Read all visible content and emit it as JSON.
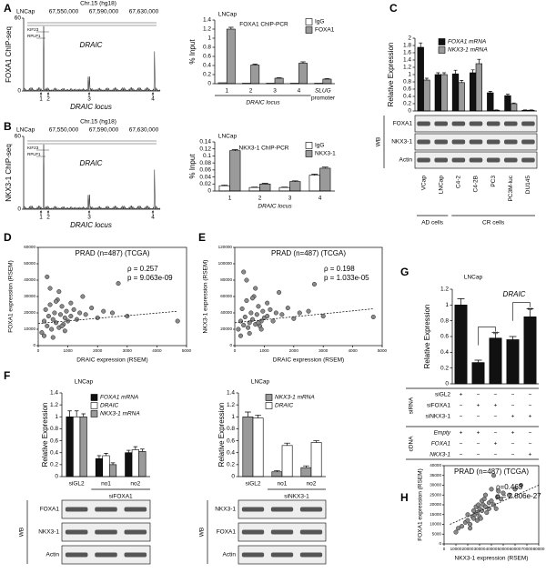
{
  "panel_labels": [
    "A",
    "B",
    "C",
    "D",
    "E",
    "F",
    "G",
    "H"
  ],
  "chip_seq": [
    {
      "ylabel": "FOXA1 ChIP-seq",
      "yticks": [
        0,
        60
      ],
      "cell": "LNCap",
      "chrom": "Chr.15 (hg18)",
      "coords": [
        "67,550,000",
        "67,590,000",
        "67,630,000"
      ],
      "genes": [
        "KIF23",
        "RPLP1"
      ],
      "gene": "DRAIC",
      "sites": [
        "1",
        "2",
        "3",
        "4"
      ],
      "xlabel": "DRAIC locus"
    },
    {
      "ylabel": "NKX3-1 ChIP-seq",
      "yticks": [
        0,
        60
      ],
      "cell": "LNCap",
      "chrom": "Chr.15 (hg18)",
      "coords": [
        "67,550,000",
        "67,590,000",
        "67,630,000"
      ],
      "genes": [
        "KIF23",
        "RPLP1"
      ],
      "gene": "DRAIC",
      "sites": [
        "1",
        "2",
        "3",
        "4"
      ],
      "xlabel": "DRAIC locus"
    }
  ],
  "blot_c": {
    "wb": "WB",
    "rows": [
      "FOXA1",
      "NKX3-1",
      "Actin"
    ],
    "groups": [
      "AD cells",
      "CR cells"
    ]
  },
  "blot_f": [
    {
      "wb": "WB",
      "rows": [
        "FOXA1",
        "NKX3-1",
        "Actin"
      ]
    },
    {
      "wb": "WB",
      "rows": [
        "NKX3-1",
        "FOXA1",
        "Actin"
      ]
    }
  ],
  "chart_data": [
    {
      "type": "bar",
      "title": "FOXA1 ChIP-PCR",
      "subtitle": "LNCap",
      "ylabel": "% Input",
      "xlabel": "DRAIC locus",
      "xlabel2": "promoter",
      "categories": [
        "1",
        "2",
        "3",
        "4",
        "SLUG"
      ],
      "series": [
        {
          "name": "IgG",
          "color": "#ffffff",
          "values": [
            0.02,
            0.01,
            0.01,
            0.01,
            0.01
          ]
        },
        {
          "name": "FOXA1",
          "color": "#9a9a9a",
          "values": [
            1.2,
            0.41,
            0.12,
            0.45,
            0.1
          ],
          "errors": [
            0.04,
            0.02,
            0.01,
            0.03,
            0.01
          ]
        }
      ],
      "ylim": [
        0,
        1.4
      ],
      "yticks": [
        0,
        0.2,
        0.4,
        0.6,
        0.8,
        1,
        1.2,
        1.4
      ],
      "legend": "top-right"
    },
    {
      "type": "bar",
      "title": "NKX3-1 ChIP-PCR",
      "subtitle": "LNCap",
      "ylabel": "% Input",
      "xlabel": "DRAIC locus",
      "categories": [
        "1",
        "2",
        "3",
        "4"
      ],
      "series": [
        {
          "name": "IgG",
          "color": "#ffffff",
          "values": [
            0.015,
            0.01,
            0.01,
            0.045
          ],
          "errors": [
            0.002,
            0.001,
            0.001,
            0.003
          ]
        },
        {
          "name": "NKX3-1",
          "color": "#9a9a9a",
          "values": [
            0.115,
            0.02,
            0.027,
            0.065
          ],
          "errors": [
            0.003,
            0.002,
            0.002,
            0.003
          ]
        }
      ],
      "ylim": [
        0,
        0.14
      ],
      "yticks": [
        0,
        0.02,
        0.04,
        0.06,
        0.08,
        0.1,
        0.12,
        0.14
      ],
      "legend": "top-right"
    },
    {
      "type": "bar",
      "ylabel": "Relative Expression",
      "categories": [
        "VCap",
        "LNCap",
        "C4-2",
        "C4-2B",
        "PC3",
        "PC3M-luc",
        "DU145"
      ],
      "series": [
        {
          "name": "FOXA1 mRNA",
          "color": "#111111",
          "values": [
            1.75,
            1.0,
            1.02,
            1.05,
            0.5,
            0.42,
            0.02
          ],
          "errors": [
            0.12,
            0.05,
            0.1,
            0.08,
            0.04,
            0.04,
            0.01
          ]
        },
        {
          "name": "NKX3-1 mRNA",
          "color": "#9a9a9a",
          "values": [
            0.85,
            1.0,
            0.78,
            1.3,
            0.02,
            0.2,
            0.02
          ],
          "errors": [
            0.05,
            0.05,
            0.06,
            0.12,
            0.01,
            0.02,
            0.01
          ]
        }
      ],
      "ylim": [
        0,
        2
      ],
      "yticks": [
        0,
        0.2,
        0.4,
        0.6,
        0.8,
        1,
        1.2,
        1.4,
        1.6,
        1.8,
        2
      ],
      "legend": "top-left"
    },
    {
      "type": "scatter",
      "title": "PRAD (n=487) (TCGA)",
      "stats": [
        "ρ = 0.257",
        "p = 9.063e-09"
      ],
      "xlabel": "DRAIC expression (RSEM)",
      "ylabel": "FOXA1 expression (RSEM)",
      "x": [
        120,
        200,
        250,
        300,
        350,
        400,
        450,
        500,
        550,
        600,
        650,
        700,
        750,
        800,
        850,
        900,
        950,
        1000,
        1100,
        1200,
        1300,
        1400,
        1500,
        1600,
        1800,
        2000,
        2200,
        2500,
        2700,
        3000,
        4700,
        300,
        500,
        700,
        900,
        1100,
        200,
        400,
        600,
        800
      ],
      "values": [
        8000,
        15000,
        22000,
        12000,
        18000,
        25000,
        10000,
        16000,
        20000,
        14000,
        28000,
        11000,
        19000,
        24000,
        13000,
        17000,
        21000,
        15000,
        18000,
        22000,
        16000,
        20000,
        30000,
        19000,
        23000,
        17000,
        21000,
        20000,
        38000,
        18000,
        15000,
        42000,
        5000,
        33000,
        9000,
        26000,
        6000,
        35000,
        27000,
        12000
      ],
      "trendline": {
        "x": [
          0,
          4700
        ],
        "y": [
          13500,
          21000
        ]
      },
      "xlim": [
        0,
        5000
      ],
      "xticks": [
        0,
        1000,
        2000,
        3000,
        4000,
        5000
      ],
      "ylim": [
        0,
        60000
      ],
      "yticks": [
        0,
        10000,
        20000,
        30000,
        40000,
        50000,
        60000
      ]
    },
    {
      "type": "scatter",
      "title": "PRAD (n=487) (TCGA)",
      "stats": [
        "ρ = 0.198",
        "p = 1.033e-05"
      ],
      "xlabel": "DRAIC expression (RSEM)",
      "ylabel": "NKX3-1 expression (RSEM)",
      "x": [
        120,
        200,
        250,
        300,
        350,
        400,
        450,
        500,
        550,
        600,
        650,
        700,
        750,
        800,
        850,
        900,
        950,
        1000,
        1100,
        1200,
        1300,
        1400,
        1500,
        1600,
        1800,
        2000,
        2200,
        2500,
        2700,
        3000,
        4700,
        300,
        500,
        700,
        900,
        1100,
        200,
        400,
        600,
        800
      ],
      "values": [
        20000,
        30000,
        45000,
        25000,
        35000,
        55000,
        22000,
        28000,
        40000,
        32000,
        60000,
        26000,
        38000,
        48000,
        24000,
        30000,
        42000,
        34000,
        36000,
        44000,
        30000,
        40000,
        65000,
        38000,
        46000,
        33000,
        40000,
        42000,
        75000,
        36000,
        35000,
        90000,
        15000,
        70000,
        20000,
        52000,
        12000,
        80000,
        58000,
        28000
      ],
      "trendline": {
        "x": [
          0,
          4700
        ],
        "y": [
          28000,
          45000
        ]
      },
      "xlim": [
        0,
        5000
      ],
      "xticks": [
        0,
        1000,
        2000,
        3000,
        4000,
        5000
      ],
      "ylim": [
        0,
        120000
      ],
      "yticks": [
        0,
        20000,
        40000,
        60000,
        80000,
        100000,
        120000
      ]
    },
    {
      "type": "bar",
      "subtitle": "LNCap",
      "ylabel": "Relative Expression",
      "group_label": "siFOXA1",
      "categories": [
        "siGL2",
        "no1",
        "no2"
      ],
      "series": [
        {
          "name": "FOXA1 mRNA",
          "color": "#111111",
          "values": [
            1,
            0.3,
            0.4
          ],
          "errors": [
            0.1,
            0.05,
            0.04
          ]
        },
        {
          "name": "DRAIC",
          "color": "#ffffff",
          "values": [
            1,
            0.35,
            0.45
          ],
          "errors": [
            0.1,
            0.04,
            0.05
          ]
        },
        {
          "name": "NKX3-1 mRNA",
          "color": "#9a9a9a",
          "values": [
            1,
            0.2,
            0.42
          ],
          "errors": [
            0.05,
            0.03,
            0.04
          ]
        }
      ],
      "ylim": [
        0,
        1.4
      ],
      "yticks": [
        0,
        0.2,
        0.4,
        0.6,
        0.8,
        1,
        1.2,
        1.4
      ],
      "legend": "top-right"
    },
    {
      "type": "bar",
      "subtitle": "LNCap",
      "ylabel": "Relative Expression",
      "group_label": "siNKX3-1",
      "categories": [
        "siGL2",
        "no1",
        "no2"
      ],
      "series": [
        {
          "name": "NKX3-1 mRNA",
          "color": "#9a9a9a",
          "values": [
            1,
            0.08,
            0.15
          ],
          "errors": [
            0.08,
            0.02,
            0.03
          ]
        },
        {
          "name": "DRAIC",
          "color": "#ffffff",
          "values": [
            0.98,
            0.52,
            0.57
          ],
          "errors": [
            0.05,
            0.04,
            0.03
          ]
        }
      ],
      "ylim": [
        0,
        1.4
      ],
      "yticks": [
        0,
        0.2,
        0.4,
        0.6,
        0.8,
        1,
        1.2,
        1.4
      ],
      "legend": "top-right"
    },
    {
      "type": "bar",
      "title": "DRAIC",
      "subtitle": "LNCap",
      "ylabel": "Relative Expression",
      "color": "#111111",
      "values": [
        1,
        0.27,
        0.58,
        0.56,
        0.85
      ],
      "errors": [
        0.08,
        0.03,
        0.07,
        0.04,
        0.1
      ],
      "ylim": [
        0,
        1.2
      ],
      "yticks": [
        0,
        0.2,
        0.4,
        0.6,
        0.8,
        1,
        1.2
      ],
      "annotations": [
        "**",
        "**"
      ],
      "table": {
        "groups": [
          {
            "name": "siRNA",
            "rows": [
              {
                "label": "siGL2",
                "cells": [
                  "+",
                  "−",
                  "−",
                  "−",
                  "−"
                ]
              },
              {
                "label": "siFOXA1",
                "cells": [
                  "−",
                  "+",
                  "+",
                  "−",
                  "−"
                ]
              },
              {
                "label": "siNKX3-1",
                "cells": [
                  "−",
                  "−",
                  "−",
                  "+",
                  "+"
                ]
              }
            ]
          },
          {
            "name": "cDNA",
            "rows": [
              {
                "label": "Empty",
                "cells": [
                  "+",
                  "+",
                  "−",
                  "+",
                  "−"
                ]
              },
              {
                "label": "FOXA1",
                "cells": [
                  "−",
                  "−",
                  "+",
                  "−",
                  "−"
                ]
              },
              {
                "label": "NKX3-1",
                "cells": [
                  "−",
                  "−",
                  "−",
                  "−",
                  "+"
                ]
              }
            ]
          }
        ]
      }
    },
    {
      "type": "scatter",
      "title": "PRAD (n=487) (TCGA)",
      "stats": [
        "ρ=0.463",
        "p = 2.806e-27"
      ],
      "xlabel": "NKX3-1 expression (RSEM)",
      "ylabel": "FOXA1 expression (RSEM)",
      "x": [
        10000,
        12000,
        15000,
        18000,
        20000,
        22000,
        24000,
        25000,
        26000,
        28000,
        30000,
        30000,
        32000,
        33000,
        35000,
        36000,
        38000,
        40000,
        42000,
        45000,
        48000,
        50000,
        55000,
        60000,
        65000,
        20000,
        25000,
        28000,
        32000,
        35000,
        38000,
        40000,
        42000,
        27000,
        31000,
        34000,
        22000,
        29000,
        44000,
        46000
      ],
      "values": [
        6000,
        8000,
        9000,
        11000,
        12000,
        10000,
        14000,
        13000,
        15000,
        16000,
        14000,
        18000,
        17000,
        20000,
        19000,
        16000,
        21000,
        22000,
        20000,
        24000,
        23000,
        26000,
        25000,
        28000,
        30000,
        15000,
        17000,
        12000,
        22000,
        25000,
        18000,
        28000,
        35000,
        19000,
        13000,
        23000,
        8000,
        20000,
        18000,
        27000
      ],
      "trendline": {
        "x": [
          5000,
          80000
        ],
        "y": [
          10000,
          30000
        ]
      },
      "xlim": [
        0,
        80000
      ],
      "xticks": [
        0,
        10000,
        20000,
        30000,
        40000,
        50000,
        60000,
        70000,
        80000
      ],
      "ylim": [
        0,
        40000
      ],
      "yticks": [
        0,
        5000,
        10000,
        15000,
        20000,
        25000,
        30000,
        35000,
        40000
      ]
    }
  ]
}
